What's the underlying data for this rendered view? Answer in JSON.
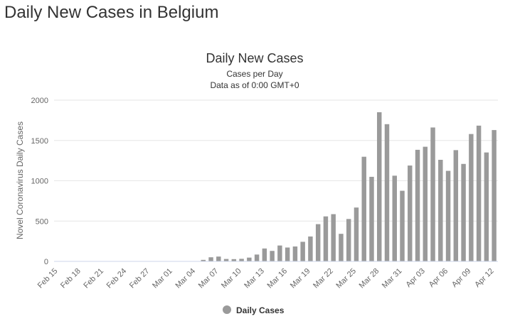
{
  "page": {
    "heading": "Daily New Cases in Belgium"
  },
  "chart_data": {
    "type": "bar",
    "title": "Daily New Cases",
    "subtitle_lines": [
      "Cases per Day",
      "Data as of 0:00 GMT+0"
    ],
    "ylabel": "Novel Coronavirus Daily Cases",
    "xlabel": "",
    "ylim": [
      0,
      2000
    ],
    "yticks": [
      0,
      500,
      1000,
      1500,
      2000
    ],
    "grid": true,
    "legend_position": "bottom",
    "categories": [
      "Feb 15",
      "Feb 16",
      "Feb 17",
      "Feb 18",
      "Feb 19",
      "Feb 20",
      "Feb 21",
      "Feb 22",
      "Feb 23",
      "Feb 24",
      "Feb 25",
      "Feb 26",
      "Feb 27",
      "Feb 28",
      "Feb 29",
      "Mar 01",
      "Mar 02",
      "Mar 03",
      "Mar 04",
      "Mar 05",
      "Mar 06",
      "Mar 07",
      "Mar 08",
      "Mar 09",
      "Mar 10",
      "Mar 11",
      "Mar 12",
      "Mar 13",
      "Mar 14",
      "Mar 15",
      "Mar 16",
      "Mar 17",
      "Mar 18",
      "Mar 19",
      "Mar 20",
      "Mar 21",
      "Mar 22",
      "Mar 23",
      "Mar 24",
      "Mar 25",
      "Mar 26",
      "Mar 27",
      "Mar 28",
      "Mar 29",
      "Mar 30",
      "Mar 31",
      "Apr 01",
      "Apr 02",
      "Apr 03",
      "Apr 04",
      "Apr 05",
      "Apr 06",
      "Apr 07",
      "Apr 08",
      "Apr 09",
      "Apr 10",
      "Apr 11",
      "Apr 12"
    ],
    "tick_labels": [
      "Feb 15",
      "Feb 18",
      "Feb 21",
      "Feb 24",
      "Feb 27",
      "Mar 01",
      "Mar 04",
      "Mar 07",
      "Mar 10",
      "Mar 13",
      "Mar 16",
      "Mar 19",
      "Mar 22",
      "Mar 25",
      "Mar 28",
      "Mar 31",
      "Apr 03",
      "Apr 06",
      "Apr 09",
      "Apr 12"
    ],
    "series": [
      {
        "name": "Daily Cases",
        "color": "#9a9a9a",
        "values": [
          0,
          0,
          0,
          0,
          0,
          0,
          0,
          0,
          0,
          0,
          0,
          0,
          0,
          0,
          0,
          1,
          0,
          0,
          0,
          19,
          51,
          60,
          30,
          28,
          32,
          47,
          85,
          160,
          130,
          197,
          172,
          185,
          243,
          309,
          462,
          558,
          586,
          342,
          526,
          668,
          1298,
          1049,
          1850,
          1702,
          1063,
          876,
          1189,
          1384,
          1422,
          1661,
          1260,
          1123,
          1380,
          1209,
          1580,
          1684,
          1351,
          1629
        ]
      }
    ]
  }
}
